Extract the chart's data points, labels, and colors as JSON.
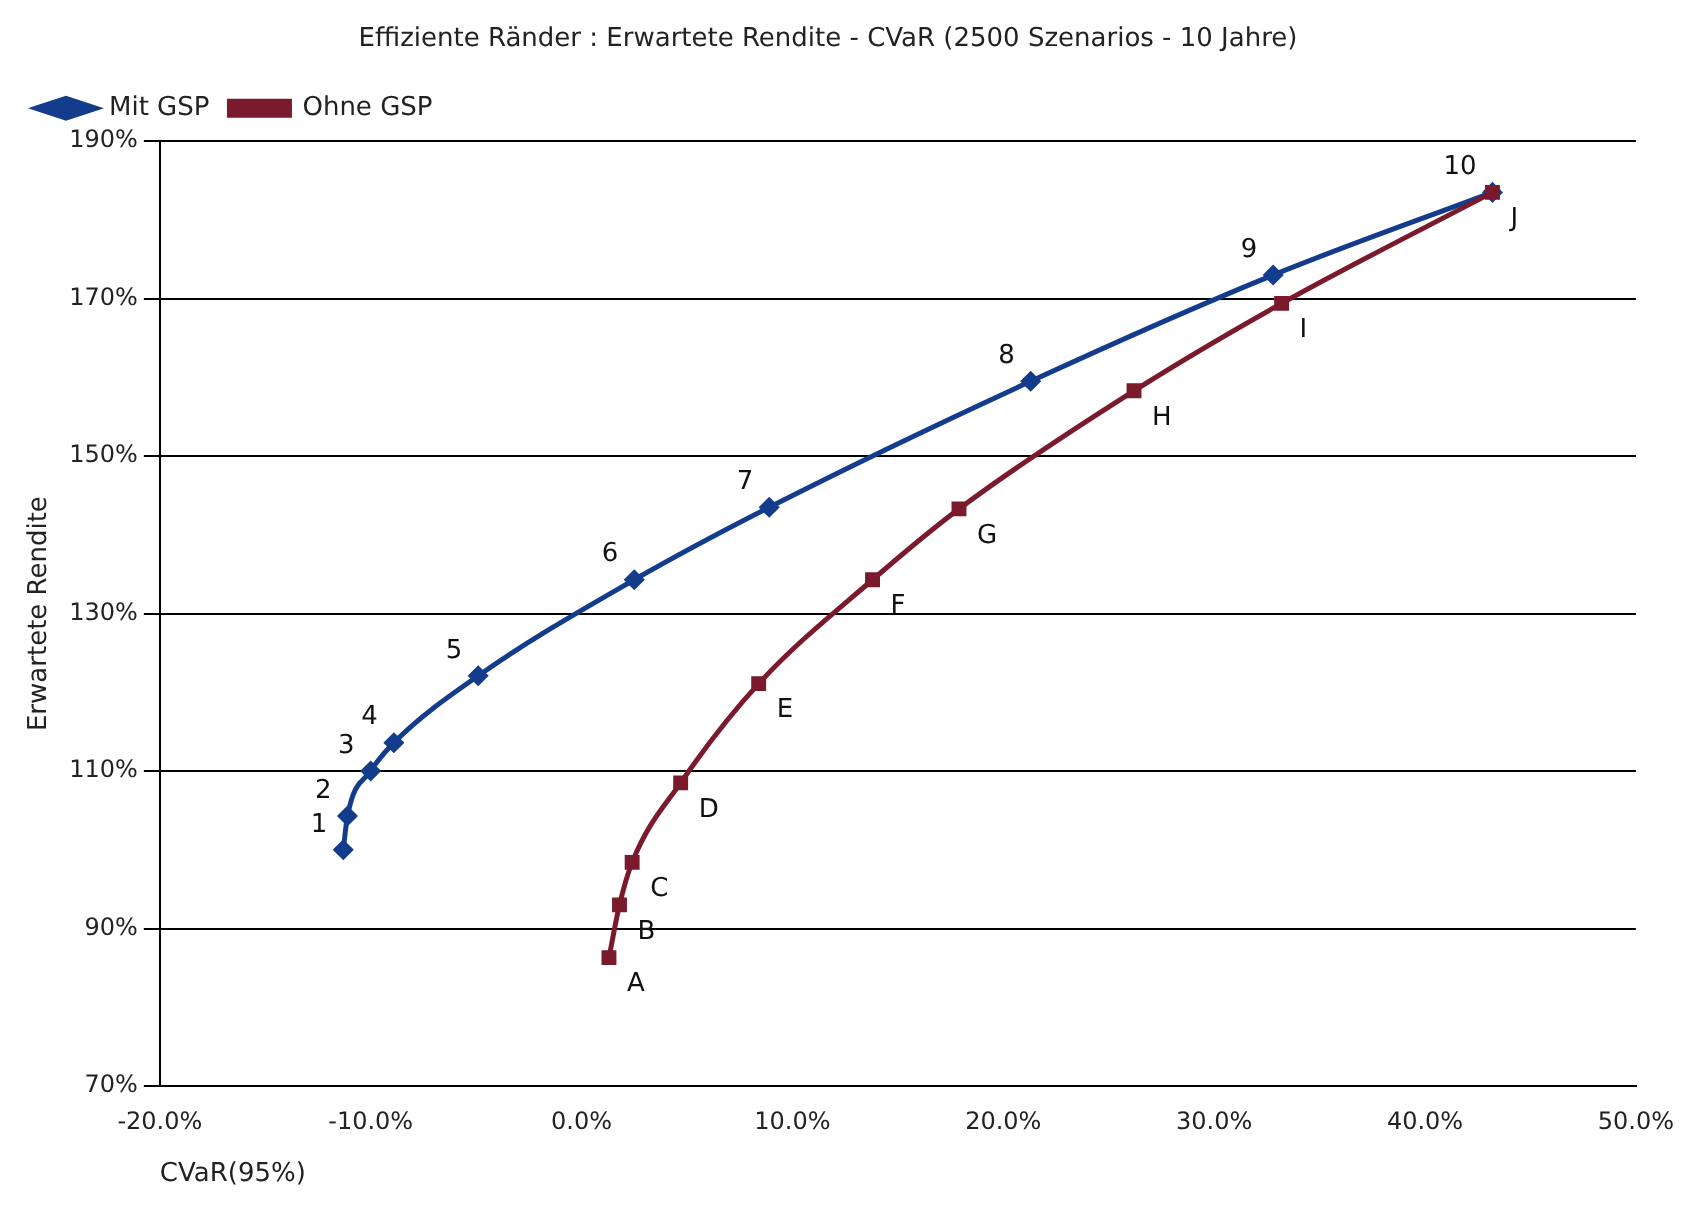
{
  "chart_data": {
    "type": "line",
    "title": "Effiziente Ränder : Erwartete Rendite - CVaR (2500 Szenarios - 10 Jahre)",
    "xlabel": "CVaR(95%)",
    "ylabel": "Erwartete Rendite",
    "xlim": [
      -20,
      50
    ],
    "xticks": [
      {
        "value": -20,
        "label": "-20.0%"
      },
      {
        "value": -10,
        "label": "-10.0%"
      },
      {
        "value": 0,
        "label": "0.0%"
      },
      {
        "value": 10,
        "label": "10.0%"
      },
      {
        "value": 20,
        "label": "20.0%"
      },
      {
        "value": 30,
        "label": "30.0%"
      },
      {
        "value": 40,
        "label": "40.0%"
      },
      {
        "value": 50,
        "label": "50.0%"
      }
    ],
    "ylim": [
      70,
      190
    ],
    "yticks": [
      {
        "value": 70,
        "label": "70%"
      },
      {
        "value": 90,
        "label": "90%"
      },
      {
        "value": 110,
        "label": "110%"
      },
      {
        "value": 130,
        "label": "130%"
      },
      {
        "value": 150,
        "label": "150%"
      },
      {
        "value": 170,
        "label": "170%"
      },
      {
        "value": 190,
        "label": "190%"
      }
    ],
    "grid": "y",
    "legend": "top left",
    "series": [
      {
        "name": "Mit GSP",
        "color": "#143c8c",
        "marker": "diamond",
        "x": [
          -11.3,
          -11.1,
          -10.0,
          -8.9,
          -4.9,
          2.5,
          8.9,
          21.3,
          32.8,
          43.2
        ],
        "values": [
          100,
          104.3,
          110,
          113.6,
          122.1,
          134.3,
          143.5,
          159.5,
          173,
          183.5
        ]
      },
      {
        "name": "Ohne GSP",
        "color": "#7a1a2c",
        "marker": "square",
        "x": [
          1.3,
          1.8,
          2.4,
          4.7,
          8.4,
          13.8,
          17.9,
          26.2,
          33.2,
          43.2
        ],
        "values": [
          86.3,
          93,
          98.4,
          108.5,
          121.1,
          134.3,
          143.3,
          158.3,
          169.4,
          183.5
        ]
      }
    ],
    "annotations": [
      {
        "text": "1",
        "x": -11.3,
        "y": 100
      },
      {
        "text": "2",
        "x": -11.1,
        "y": 104.3
      },
      {
        "text": "3",
        "x": -10.0,
        "y": 110
      },
      {
        "text": "4",
        "x": -8.9,
        "y": 113.6
      },
      {
        "text": "5",
        "x": -4.9,
        "y": 122.1
      },
      {
        "text": "6",
        "x": 2.5,
        "y": 134.3
      },
      {
        "text": "7",
        "x": 8.9,
        "y": 143.5
      },
      {
        "text": "8",
        "x": 21.3,
        "y": 159.5
      },
      {
        "text": "9",
        "x": 32.8,
        "y": 173
      },
      {
        "text": "10",
        "x": 43.2,
        "y": 183.5
      },
      {
        "text": "A",
        "x": 1.3,
        "y": 86.3
      },
      {
        "text": "B",
        "x": 1.8,
        "y": 93
      },
      {
        "text": "C",
        "x": 2.4,
        "y": 98.4
      },
      {
        "text": "D",
        "x": 4.7,
        "y": 108.5
      },
      {
        "text": "E",
        "x": 8.4,
        "y": 121.1
      },
      {
        "text": "F",
        "x": 13.8,
        "y": 134.3
      },
      {
        "text": "G",
        "x": 17.9,
        "y": 143.3
      },
      {
        "text": "H",
        "x": 26.2,
        "y": 158.3
      },
      {
        "text": "I",
        "x": 33.2,
        "y": 169.4
      },
      {
        "text": "J",
        "x": 43.2,
        "y": 183.5
      }
    ]
  }
}
